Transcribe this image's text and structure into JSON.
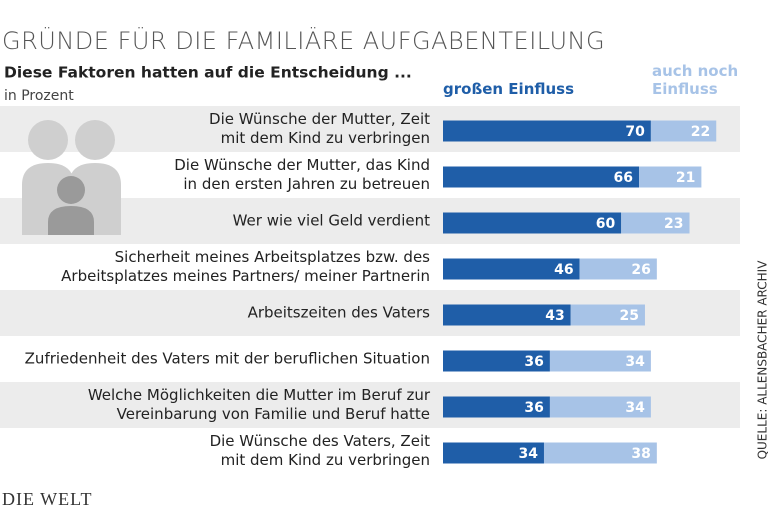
{
  "chart_data": {
    "type": "stacked-bar",
    "title": "GRÜNDE FÜR DIE FAMILIÄRE AUFGABENTEILUNG",
    "subtitle": "Diese Faktoren hatten auf die Entscheidung ...",
    "unit_note": "in Prozent",
    "categories": [
      [
        "Die Wünsche der Mutter, Zeit",
        "mit dem Kind zu verbringen"
      ],
      [
        "Die Wünsche der Mutter, das Kind",
        "in den ersten Jahren  zu betreuen"
      ],
      [
        "Wer wie viel Geld verdient"
      ],
      [
        "Sicherheit meines Arbeitsplatzes bzw. des",
        "Arbeitsplatzes meines Partners/ meiner Partnerin"
      ],
      [
        "Arbeitszeiten des Vaters"
      ],
      [
        "Zufriedenheit des Vaters mit der beruflichen Situation"
      ],
      [
        "Welche Möglichkeiten die Mutter im Beruf zur",
        "Vereinbarung von Familie und Beruf hatte"
      ],
      [
        "Die Wünsche des Vaters, Zeit",
        "mit dem Kind zu verbringen"
      ]
    ],
    "series": [
      {
        "name": "großen Einfluss",
        "color": "#1f5ea8",
        "values": [
          70,
          66,
          60,
          46,
          43,
          36,
          36,
          34
        ]
      },
      {
        "name": "auch noch Einfluss",
        "color": "#a7c3e7",
        "values": [
          22,
          21,
          23,
          26,
          25,
          34,
          34,
          38
        ]
      }
    ],
    "source": "QUELLE: ALLENSBACHER ARCHIV",
    "logo": "DIE WELT"
  }
}
